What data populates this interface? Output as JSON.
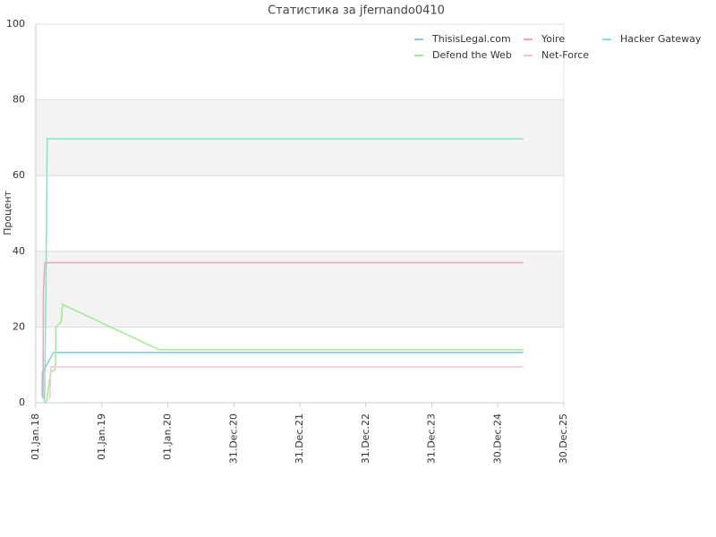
{
  "chart_data": {
    "type": "line",
    "title": "Статистика за jfernando0410",
    "y_label": "Процент",
    "xlim": [
      "2018-01-01",
      "2025-12-30"
    ],
    "xticks": [
      {
        "value": "2018-01-01",
        "label": "01.Jan.18"
      },
      {
        "value": "2019-01-01",
        "label": "01.Jan.19"
      },
      {
        "value": "2020-01-01",
        "label": "01.Jan.20"
      },
      {
        "value": "2020-12-31",
        "label": "31.Dec.20"
      },
      {
        "value": "2021-12-31",
        "label": "31.Dec.21"
      },
      {
        "value": "2022-12-31",
        "label": "31.Dec.22"
      },
      {
        "value": "2023-12-31",
        "label": "31.Dec.23"
      },
      {
        "value": "2024-12-30",
        "label": "30.Dec.24"
      },
      {
        "value": "2025-12-30",
        "label": "30.Dec.25"
      }
    ],
    "ylim": [
      0,
      100
    ],
    "yticks": [
      0,
      20,
      40,
      60,
      80,
      100
    ],
    "grid": true,
    "legend": "top-right",
    "series": [
      {
        "name": "ThisisLegal.com",
        "color": "#86c9e6",
        "x": [
          "2018-02-05",
          "2018-02-06",
          "2018-04-10",
          "2025-05-20"
        ],
        "values": [
          1.5,
          8,
          13.3,
          13.3
        ]
      },
      {
        "name": "Yoire",
        "color": "#f2a3b8",
        "x": [
          "2018-02-10",
          "2018-02-12",
          "2018-02-20",
          "2025-05-20"
        ],
        "values": [
          1,
          29,
          37,
          37
        ]
      },
      {
        "name": "Hacker Gateway",
        "color": "#7fe6c6",
        "x": [
          "2018-02-18",
          "2018-02-26",
          "2018-03-05",
          "2025-05-20"
        ],
        "values": [
          0,
          29,
          69.7,
          69.7
        ]
      },
      {
        "name": "Defend the Web",
        "color": "#9dec8e",
        "x": [
          "2018-03-01",
          "2018-03-25",
          "2018-04-20",
          "2018-04-22",
          "2018-05-22",
          "2018-05-28",
          "2019-11-14",
          "2025-05-20"
        ],
        "values": [
          0,
          8,
          9,
          20,
          21.5,
          26,
          14,
          14
        ]
      },
      {
        "name": "Net-Force",
        "color": "#f6c5d0",
        "x": [
          "2018-03-20",
          "2018-03-25",
          "2025-05-20"
        ],
        "values": [
          1,
          9.5,
          9.5
        ]
      }
    ]
  }
}
